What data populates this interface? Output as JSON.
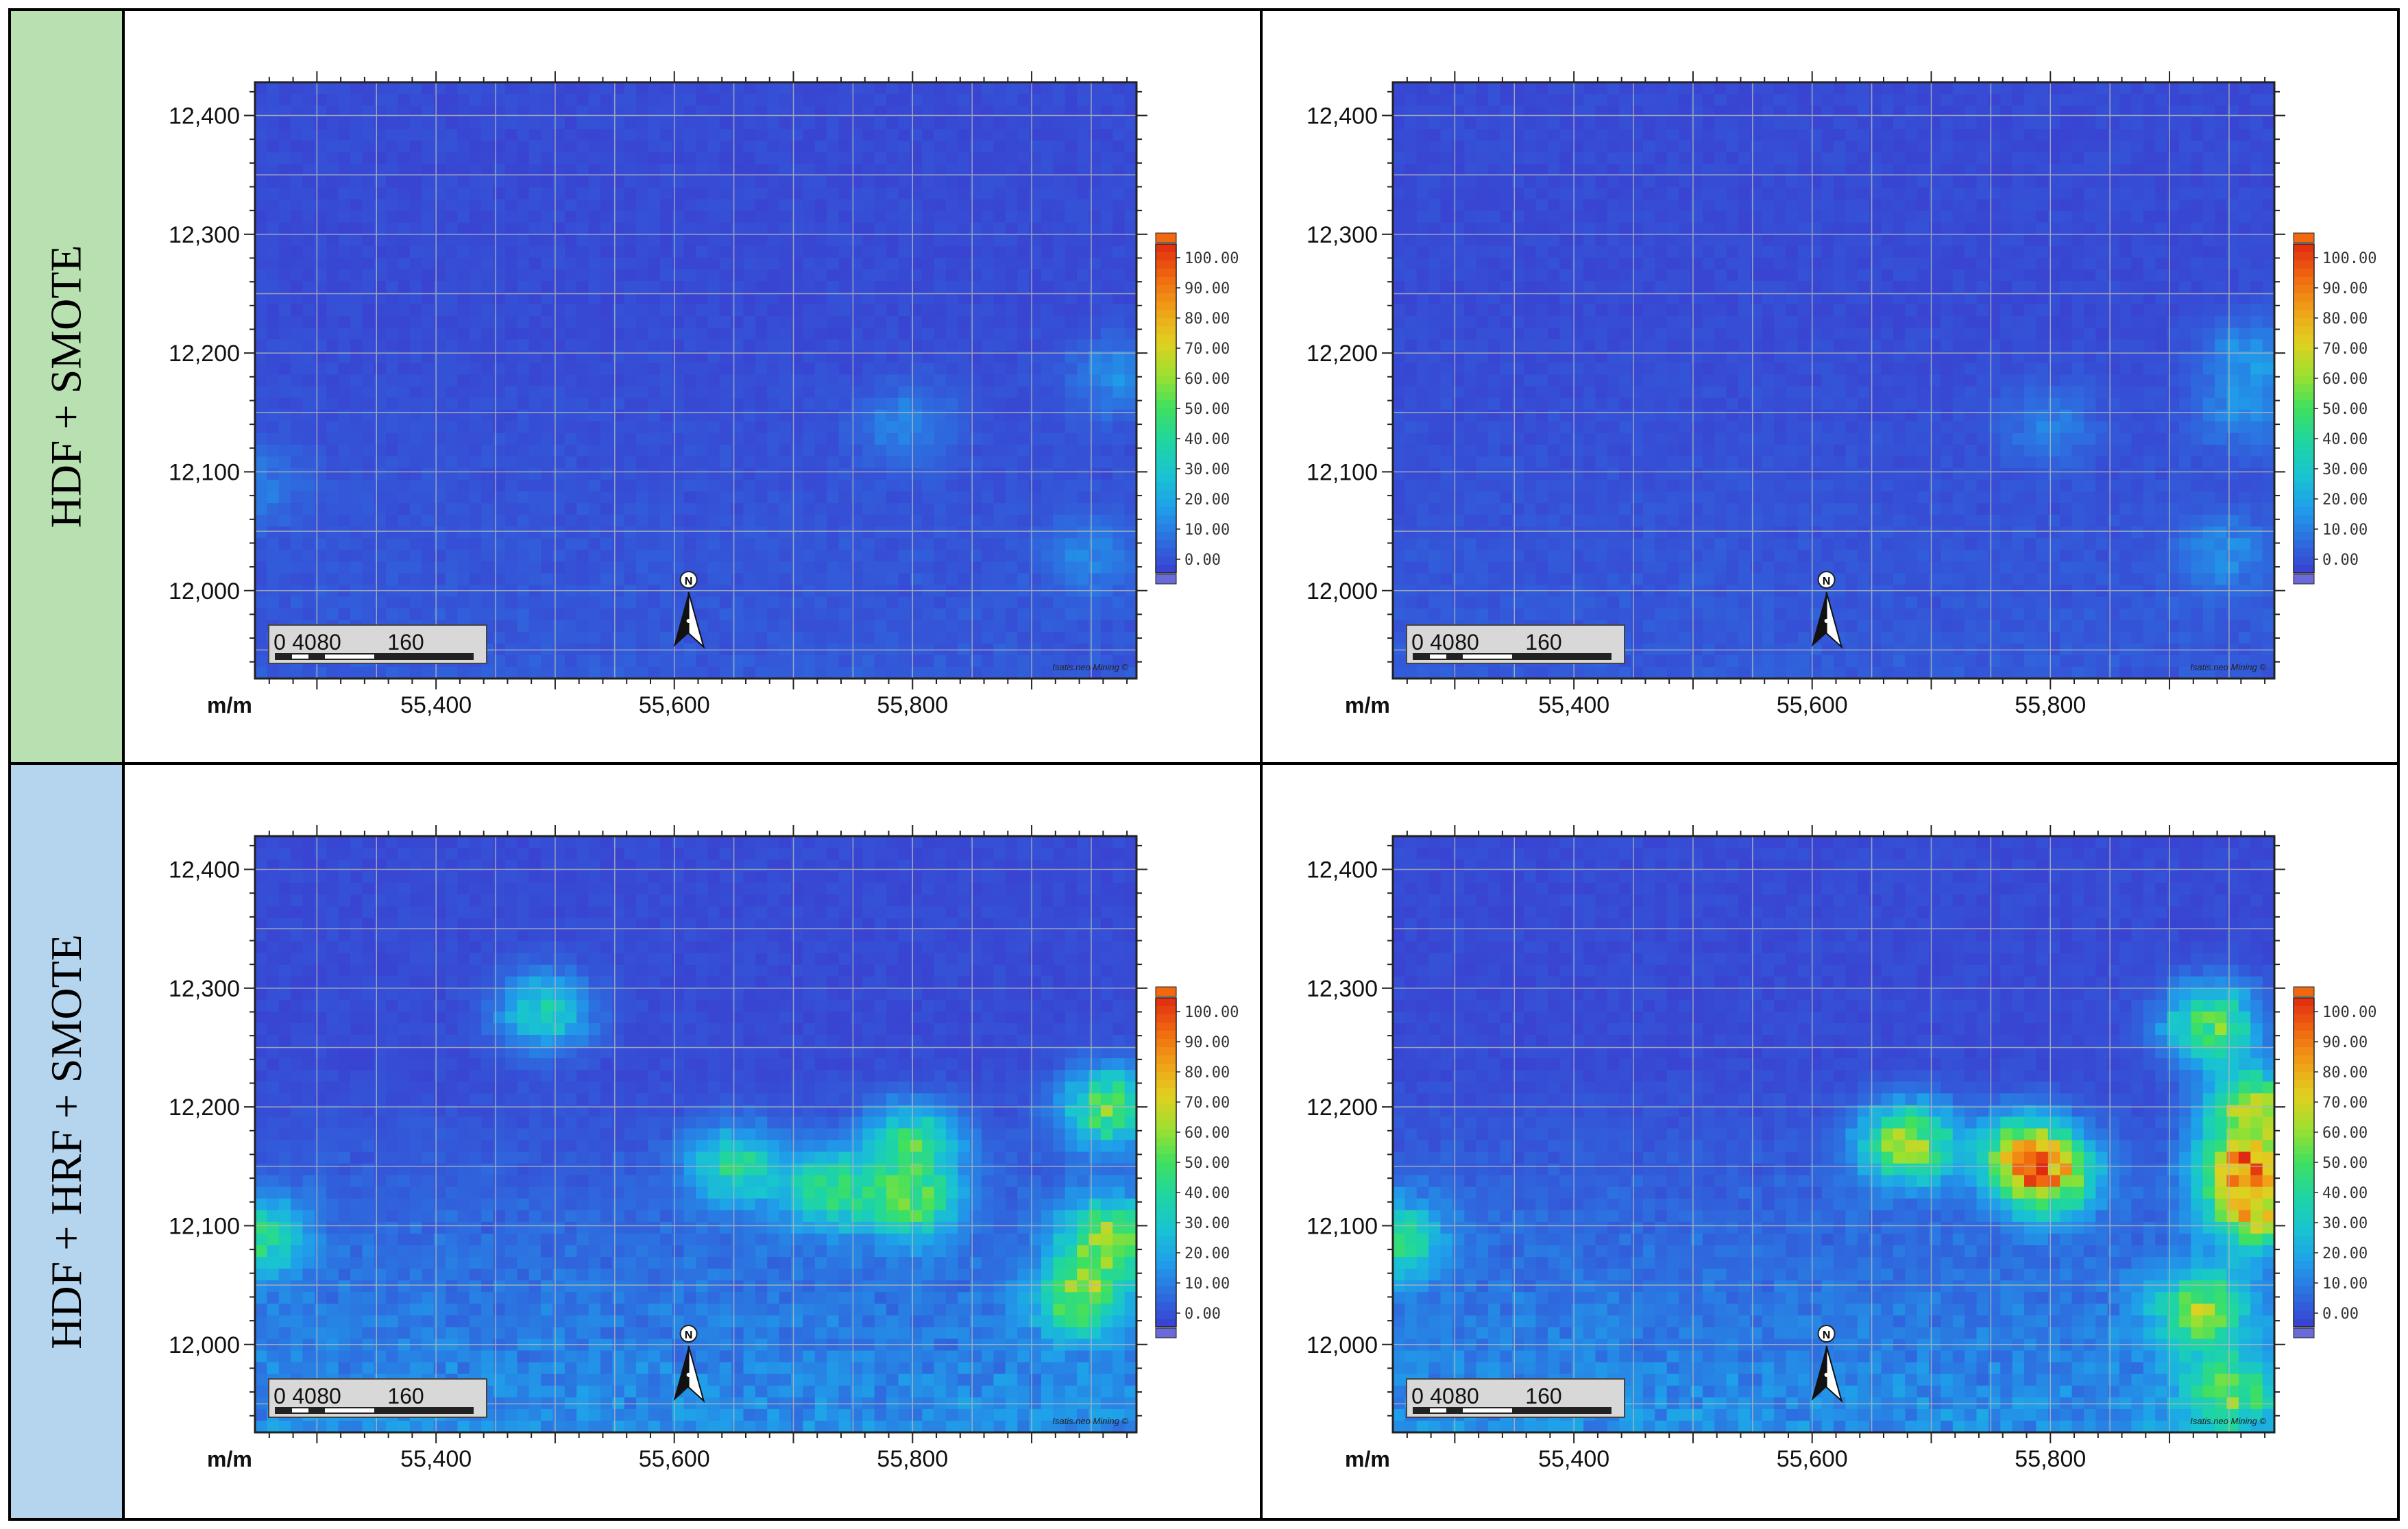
{
  "rows": [
    {
      "label": "HDF + SMOTE",
      "color": "#b8e0b0"
    },
    {
      "label": "HDF + HRF + SMOTE",
      "color": "#b5d5ef"
    }
  ],
  "axes": {
    "unit_label": "m/m",
    "x_ticks": [
      "55,400",
      "55,600",
      "55,800"
    ],
    "x_tick_values": [
      55400,
      55600,
      55800
    ],
    "y_ticks": [
      "12,400",
      "12,300",
      "12,200",
      "12,100",
      "12,000"
    ],
    "y_tick_values": [
      12400,
      12300,
      12200,
      12100,
      12000
    ],
    "xlim": [
      55248,
      55988
    ],
    "ylim": [
      11926,
      12428
    ]
  },
  "legend": {
    "labels": [
      "100.00",
      "90.00",
      "80.00",
      "70.00",
      "60.00",
      "50.00",
      "40.00",
      "30.00",
      "20.00",
      "10.00",
      "0.00"
    ]
  },
  "scale_bar": {
    "labels": [
      "0",
      "40",
      "80",
      "160"
    ]
  },
  "north_arrow": {
    "label": "N"
  },
  "watermark": "Isatis.neo Mining ©",
  "colors": {
    "background_low": "#2f6bdc",
    "colormap": [
      "#3a3fd0",
      "#2d6fe0",
      "#1fa0ea",
      "#19c4d0",
      "#1fd6a0",
      "#3fe060",
      "#9ce030",
      "#e0d020",
      "#f0a018",
      "#f06810",
      "#e02a10"
    ]
  },
  "chart_data": [
    {
      "type": "heatmap",
      "row": "HDF + SMOTE",
      "panel": "left",
      "unit": "m/m",
      "xlim": [
        55248,
        55988
      ],
      "ylim": [
        11926,
        12428
      ],
      "scale": [
        0,
        100
      ],
      "hotspots": [
        {
          "x": 55970,
          "y": 12180,
          "value": 14
        },
        {
          "x": 55795,
          "y": 12140,
          "value": 12
        },
        {
          "x": 55950,
          "y": 12030,
          "value": 10
        },
        {
          "x": 55250,
          "y": 12090,
          "value": 9
        }
      ]
    },
    {
      "type": "heatmap",
      "row": "HDF + SMOTE",
      "panel": "right",
      "unit": "m/m",
      "xlim": [
        55248,
        55988
      ],
      "ylim": [
        11926,
        12428
      ],
      "scale": [
        0,
        100
      ],
      "hotspots": [
        {
          "x": 55970,
          "y": 12200,
          "value": 15
        },
        {
          "x": 55960,
          "y": 12150,
          "value": 12
        },
        {
          "x": 55945,
          "y": 12030,
          "value": 12
        },
        {
          "x": 55800,
          "y": 12140,
          "value": 10
        }
      ]
    },
    {
      "type": "heatmap",
      "row": "HDF + HRF + SMOTE",
      "panel": "left",
      "unit": "m/m",
      "xlim": [
        55248,
        55988
      ],
      "ylim": [
        11926,
        12428
      ],
      "scale": [
        0,
        100
      ],
      "hotspots": [
        {
          "x": 55965,
          "y": 12200,
          "value": 48
        },
        {
          "x": 55965,
          "y": 12090,
          "value": 50
        },
        {
          "x": 55940,
          "y": 12040,
          "value": 42
        },
        {
          "x": 55800,
          "y": 12170,
          "value": 38
        },
        {
          "x": 55800,
          "y": 12120,
          "value": 40
        },
        {
          "x": 55650,
          "y": 12150,
          "value": 35
        },
        {
          "x": 55730,
          "y": 12130,
          "value": 38
        },
        {
          "x": 55490,
          "y": 12280,
          "value": 32
        },
        {
          "x": 55250,
          "y": 12090,
          "value": 33
        }
      ]
    },
    {
      "type": "heatmap",
      "row": "HDF + HRF + SMOTE",
      "panel": "right",
      "unit": "m/m",
      "xlim": [
        55248,
        55988
      ],
      "ylim": [
        11926,
        12428
      ],
      "scale": [
        0,
        100
      ],
      "hotspots": [
        {
          "x": 55965,
          "y": 12150,
          "value": 68
        },
        {
          "x": 55970,
          "y": 12200,
          "value": 55
        },
        {
          "x": 55935,
          "y": 12270,
          "value": 48
        },
        {
          "x": 55970,
          "y": 12110,
          "value": 52
        },
        {
          "x": 55680,
          "y": 12170,
          "value": 56
        },
        {
          "x": 55780,
          "y": 12160,
          "value": 60
        },
        {
          "x": 55800,
          "y": 12140,
          "value": 50
        },
        {
          "x": 55925,
          "y": 12030,
          "value": 48
        },
        {
          "x": 55950,
          "y": 11960,
          "value": 38
        },
        {
          "x": 55250,
          "y": 12090,
          "value": 36
        }
      ]
    }
  ]
}
